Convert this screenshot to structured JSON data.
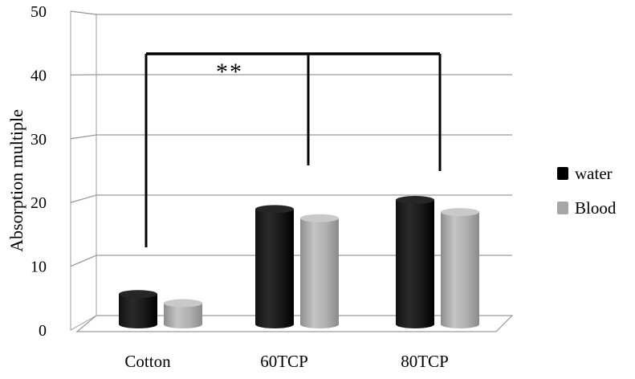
{
  "chart_data": {
    "type": "bar",
    "title": "",
    "xlabel": "",
    "ylabel": "Absorption multiple",
    "ylim": [
      0,
      50
    ],
    "yticks": [
      0,
      10,
      20,
      30,
      40,
      50
    ],
    "grid": true,
    "legend_position": "right",
    "categories": [
      "Cotton",
      "60TCP",
      "80TCP"
    ],
    "series": [
      {
        "name": "water",
        "color": "#000000",
        "values": [
          5,
          19,
          20.5
        ]
      },
      {
        "name": "Blood",
        "color": "#a6a6a6",
        "values": [
          3.5,
          17.5,
          18.5
        ]
      }
    ],
    "annotations": [
      {
        "text": "**",
        "type": "significance-bracket",
        "categories": [
          "Cotton",
          "60TCP",
          "80TCP"
        ]
      }
    ]
  }
}
